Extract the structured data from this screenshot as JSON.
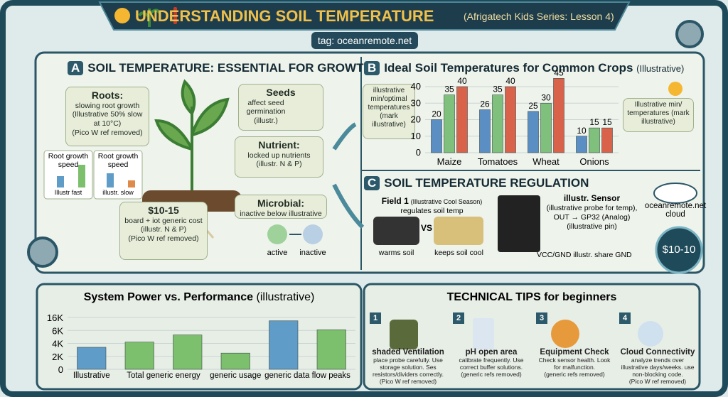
{
  "header": {
    "title": "UNDERSTANDING SOIL TEMPERATURE",
    "subtitle": "(Afrigatech Kids Series: Lesson 4)",
    "tag": "tag: oceanremote.net"
  },
  "section_a": {
    "letter": "A",
    "title": "SOIL TEMPERATURE: ESSENTIAL FOR GROWTH",
    "roots": {
      "title": "Roots:",
      "text": "slowing root growth (Illustrative 50% slow at 10°C)",
      "note": "(Pico W ref removed)"
    },
    "mini_charts": [
      {
        "title": "Root growth speed",
        "label": "Illustr fast"
      },
      {
        "title": "Root growth speed",
        "label": "illustr. slow"
      }
    ],
    "seeds": {
      "title": "Seeds",
      "text": "affect seed germination (illustr.)"
    },
    "nutrient": {
      "title": "Nutrient:",
      "text": "locked up nutrients (illustr. N & P)"
    },
    "microbial": {
      "title": "Microbial:",
      "text": "inactive below illustrative",
      "active": "active",
      "inactive": "inactive"
    },
    "cost": {
      "title": "$10-15",
      "text": "board + iot generic cost (illustr. N & P)",
      "note": "(Pico W ref removed)"
    }
  },
  "section_b": {
    "letter": "B",
    "title": "Ideal Soil Temperatures for Common Crops",
    "subtitle": "(Illustrative)",
    "left_note": "illustrative min/optimal temperatures (mark illustrative)",
    "right_note": "Illustrative min/ temperatures (mark illustrative)"
  },
  "section_c": {
    "letter": "C",
    "title": "SOIL TEMPERATURE REGULATION",
    "field": {
      "title": "Field 1",
      "subtitle": "(Illustrative Cool Season)",
      "text": "regulates soil temp",
      "vs": "VS",
      "left": "warms soil",
      "right": "keeps soil cool"
    },
    "sensor": {
      "title": "illustr. Sensor",
      "lines": [
        "(illustrative probe for temp),",
        "OUT → GP32 (Analog)",
        "(illustrative pin)"
      ],
      "footer": "VCC/GND illustr.  share GND"
    },
    "cloud": "oceanremote.net cloud",
    "badge": "$10-10"
  },
  "chart_data": [
    {
      "type": "bar",
      "categories": [
        "Maize",
        "Tomatoes",
        "Wheat",
        "Onions"
      ],
      "series": [
        {
          "color": "#5b8fc4",
          "values": [
            20,
            26,
            25,
            10
          ]
        },
        {
          "color": "#7fc07c",
          "values": [
            35,
            35,
            30,
            15
          ]
        },
        {
          "color": "#d9634a",
          "values": [
            40,
            40,
            45,
            15
          ]
        }
      ],
      "ylim": [
        0,
        40
      ],
      "yticks": [
        0,
        10,
        20,
        30,
        40
      ],
      "grid": true
    },
    {
      "type": "bar",
      "title": "System Power vs. Performance",
      "subtitle": "(illustrative)",
      "categories": [
        "Illustrative",
        "Total generic energy",
        null,
        "generic usage",
        "generic data flow peaks",
        null
      ],
      "values": [
        3400,
        4200,
        5300,
        2500,
        13400,
        6500
      ],
      "color": "#5f9cc8",
      "colors": [
        "#5f9cc8",
        "#7cbf6c",
        "#7cbf6c",
        "#7cbf6c",
        "#5f9cc8",
        "#7cbf6c"
      ],
      "ylim": [
        0,
        16000
      ],
      "yticks": [
        0,
        {
          "value": 2000,
          "label": "2K"
        },
        {
          "value": 4000,
          "label": "4K"
        },
        {
          "value": 6000,
          "label": "6K"
        },
        {
          "value": 16000,
          "label": "16K"
        }
      ],
      "grid": true
    }
  ],
  "tips": {
    "title": "TECHNICAL TIPS for beginners",
    "items": [
      {
        "number": "1",
        "title": "shaded Ventilation",
        "text": "place probe carefully. Use storage solution. Ses resistors/dividers correctly.",
        "note": "(Pico W ref removed)"
      },
      {
        "number": "2",
        "title": "pH open area",
        "text": "calibrate frequently. Use correct buffer solutions.",
        "note": "(generic refs removed)"
      },
      {
        "number": "3",
        "title": "Equipment Check",
        "text": "Check sensor health. Look for malfunction.",
        "note": "(generic refs removed)"
      },
      {
        "number": "4",
        "title": "Cloud Connectivity",
        "text": "analyze trends over illustrative days/weeks. use non-blocking code.",
        "note": "(Pico W ref removed)"
      }
    ]
  }
}
